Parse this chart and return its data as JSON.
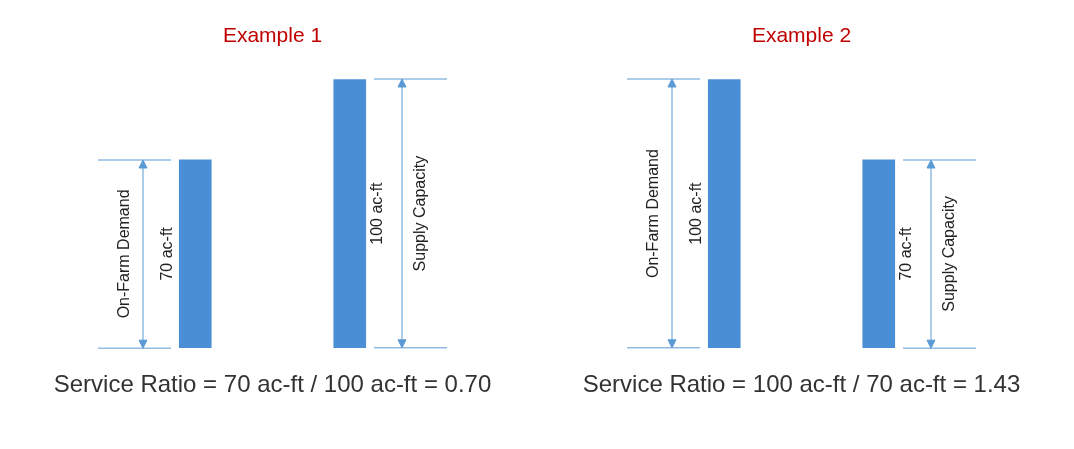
{
  "chart_data": [
    {
      "type": "bar",
      "title": "Example 1",
      "categories": [
        null,
        null
      ],
      "values": [
        70,
        100
      ],
      "value_labels": [
        "70 ac-ft",
        "100 ac-ft"
      ],
      "color": "#4a8fd6",
      "annotations": [
        "On-Farm Demand",
        "Supply Capacity",
        "Service Ratio = 70 ac-ft / 100 ac-ft = 0.70"
      ]
    },
    {
      "type": "bar",
      "title": "Example 2",
      "categories": [
        null,
        null
      ],
      "values": [
        100,
        70
      ],
      "value_labels": [
        "100 ac-ft",
        "70 ac-ft"
      ],
      "color": "#4a8fd6",
      "annotations": [
        "On-Farm Demand",
        "Supply Capacity",
        "Service Ratio = 100 ac-ft / 70 ac-ft = 1.43"
      ]
    }
  ]
}
